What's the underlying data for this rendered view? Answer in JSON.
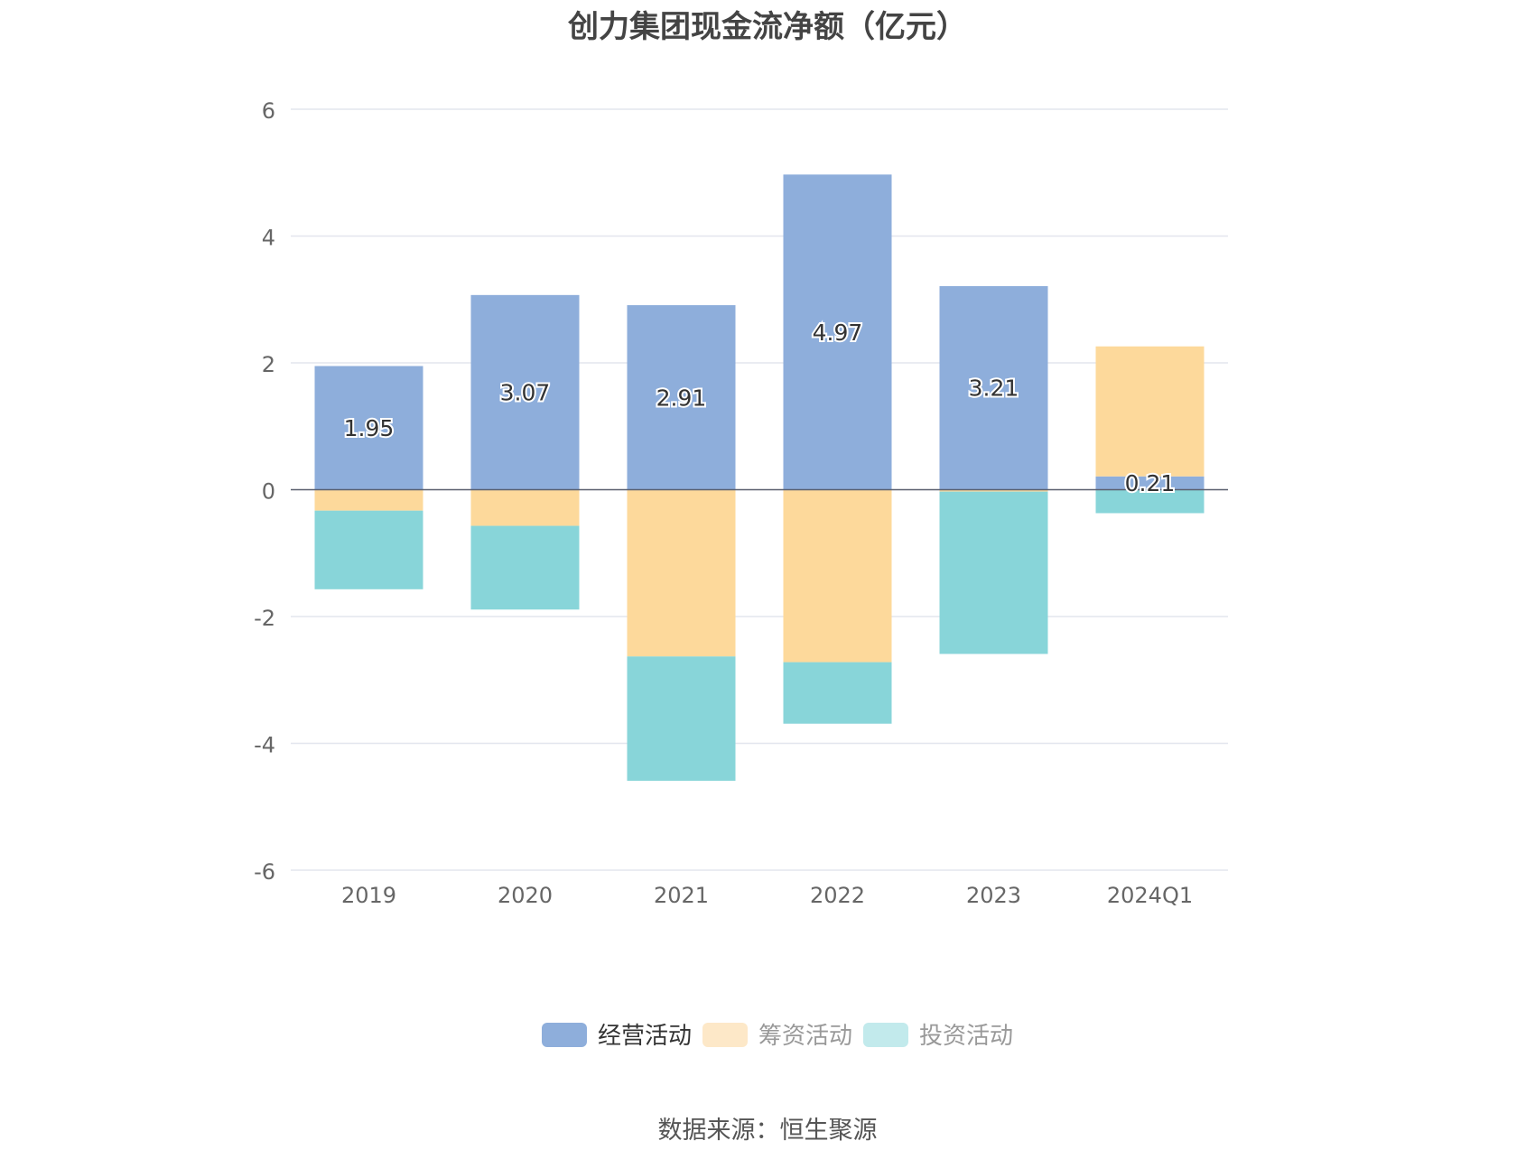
{
  "chart_data": {
    "type": "bar",
    "stacked": true,
    "title": "创力集团现金流净额（亿元）",
    "categories": [
      "2019",
      "2020",
      "2021",
      "2022",
      "2023",
      "2024Q1"
    ],
    "series": [
      {
        "name": "经营活动",
        "values": [
          1.95,
          3.07,
          2.91,
          4.97,
          3.21,
          0.21
        ],
        "labels": [
          "1.95",
          "3.07",
          "2.91",
          "4.97",
          "3.21",
          "0.21"
        ],
        "color": "#8eaedb"
      },
      {
        "name": "筹资活动",
        "values": [
          -0.33,
          -0.57,
          -2.63,
          -2.72,
          -0.03,
          2.05
        ],
        "color": "#fdd99b"
      },
      {
        "name": "投资活动",
        "values": [
          -1.24,
          -1.32,
          -1.96,
          -0.97,
          -2.56,
          -0.37
        ],
        "color": "#88d5d9"
      }
    ],
    "ylim": [
      -6,
      6
    ],
    "yticks": [
      "-6",
      "-4",
      "-2",
      "0",
      "2",
      "4",
      "6"
    ],
    "grid": true,
    "legend_position": "bottom",
    "legend_colors": [
      "#8eaedb",
      "#fde8c8",
      "#c2eaec"
    ]
  },
  "source": "数据来源：恒生聚源"
}
